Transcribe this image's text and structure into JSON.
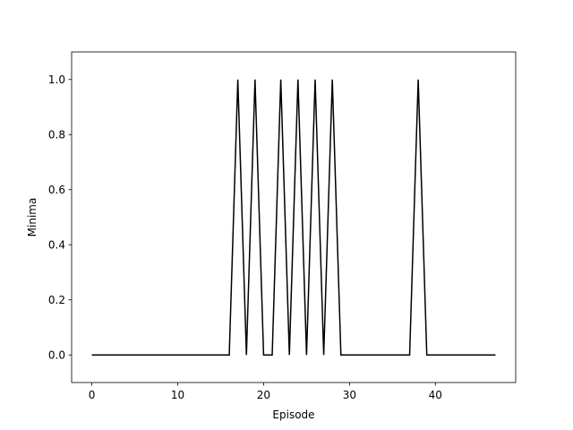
{
  "chart_data": {
    "type": "line",
    "title": "",
    "xlabel": "Episode",
    "ylabel": "Minima",
    "xlim": [
      -2.35,
      49.35
    ],
    "ylim": [
      -0.1,
      1.1
    ],
    "xticks": [
      0,
      10,
      20,
      30,
      40
    ],
    "yticks": [
      0.0,
      0.2,
      0.4,
      0.6,
      0.8,
      1.0
    ],
    "xtick_labels": [
      "0",
      "10",
      "20",
      "30",
      "40"
    ],
    "ytick_labels": [
      "0.0",
      "0.2",
      "0.4",
      "0.6",
      "0.8",
      "1.0"
    ],
    "grid": false,
    "series": [
      {
        "color": "#000000",
        "x": [
          0,
          1,
          2,
          3,
          4,
          5,
          6,
          7,
          8,
          9,
          10,
          11,
          12,
          13,
          14,
          15,
          16,
          17,
          18,
          19,
          20,
          21,
          22,
          23,
          24,
          25,
          26,
          27,
          28,
          29,
          30,
          31,
          32,
          33,
          34,
          35,
          36,
          37,
          38,
          39,
          40,
          41,
          42,
          43,
          44,
          45,
          46,
          47
        ],
        "values": [
          0,
          0,
          0,
          0,
          0,
          0,
          0,
          0,
          0,
          0,
          0,
          0,
          0,
          0,
          0,
          0,
          0,
          1,
          0,
          1,
          0,
          0,
          1,
          0,
          1,
          0,
          1,
          0,
          1,
          0,
          0,
          0,
          0,
          0,
          0,
          0,
          0,
          0,
          1,
          0,
          0,
          0,
          0,
          0,
          0,
          0,
          0,
          0
        ]
      }
    ]
  }
}
